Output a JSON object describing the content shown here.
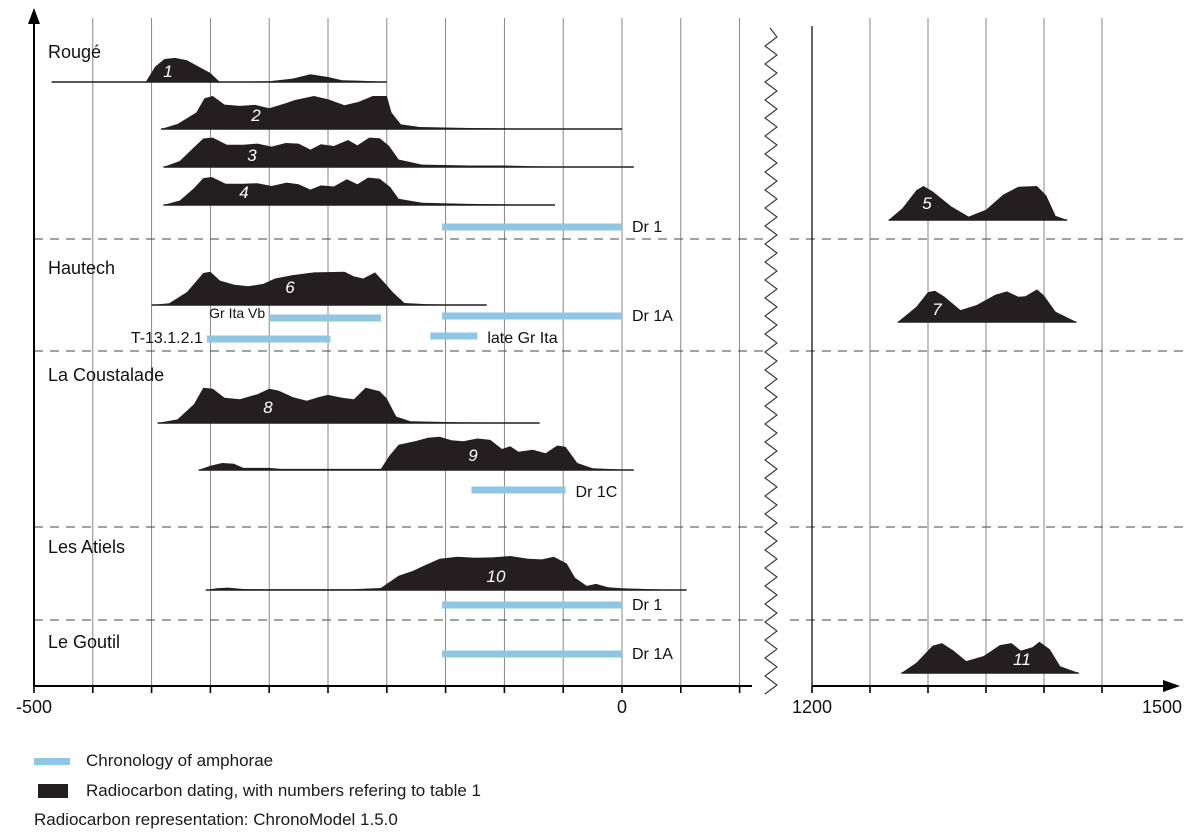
{
  "chart_data": {
    "type": "chronology",
    "left_panel": {
      "xlim": [
        -500,
        500
      ],
      "tick_labels": [
        "-500",
        "0"
      ]
    },
    "right_panel": {
      "xlim": [
        1200,
        1500
      ],
      "tick_labels": [
        "1200",
        "1500"
      ]
    },
    "sites": [
      "Rougé",
      "Hautech",
      "La Coustalade",
      "Les Atiels",
      "Le Goutil"
    ],
    "radiocarbon": [
      {
        "label": "1",
        "xmin": -485,
        "xmax": -200,
        "points": [
          [
            -485,
            0
          ],
          [
            -405,
            0
          ],
          [
            -397,
            0.55
          ],
          [
            -389,
            0.82
          ],
          [
            -380,
            0.86
          ],
          [
            -370,
            0.78
          ],
          [
            -360,
            0.55
          ],
          [
            -350,
            0.32
          ],
          [
            -342,
            0
          ],
          [
            -300,
            0.03
          ],
          [
            -280,
            0.12
          ],
          [
            -265,
            0.28
          ],
          [
            -250,
            0.18
          ],
          [
            -238,
            0.06
          ],
          [
            -225,
            0.05
          ],
          [
            -212,
            0.03
          ],
          [
            -200,
            0
          ]
        ]
      },
      {
        "label": "2",
        "xmin": -392,
        "xmax": 0,
        "points": [
          [
            -392,
            0
          ],
          [
            -378,
            0.15
          ],
          [
            -362,
            0.5
          ],
          [
            -355,
            0.93
          ],
          [
            -348,
            1
          ],
          [
            -338,
            0.74
          ],
          [
            -325,
            0.7
          ],
          [
            -312,
            0.73
          ],
          [
            -300,
            0.63
          ],
          [
            -286,
            0.78
          ],
          [
            -278,
            0.88
          ],
          [
            -262,
            1
          ],
          [
            -250,
            0.9
          ],
          [
            -236,
            0.72
          ],
          [
            -224,
            0.82
          ],
          [
            -212,
            1
          ],
          [
            -200,
            1
          ],
          [
            -196,
            0.5
          ],
          [
            -188,
            0.14
          ],
          [
            -172,
            0.06
          ],
          [
            -130,
            0.03
          ],
          [
            -90,
            0.015
          ],
          [
            0,
            0
          ]
        ]
      },
      {
        "label": "3",
        "xmin": -390,
        "xmax": 10,
        "points": [
          [
            -390,
            0
          ],
          [
            -376,
            0.2
          ],
          [
            -365,
            0.62
          ],
          [
            -356,
            0.95
          ],
          [
            -348,
            0.98
          ],
          [
            -336,
            0.74
          ],
          [
            -322,
            0.74
          ],
          [
            -310,
            0.78
          ],
          [
            -298,
            0.68
          ],
          [
            -286,
            0.8
          ],
          [
            -275,
            0.78
          ],
          [
            -265,
            0.58
          ],
          [
            -256,
            0.76
          ],
          [
            -245,
            0.7
          ],
          [
            -233,
            0.9
          ],
          [
            -225,
            0.72
          ],
          [
            -215,
            0.98
          ],
          [
            -206,
            0.96
          ],
          [
            -198,
            0.7
          ],
          [
            -190,
            0.25
          ],
          [
            -170,
            0.08
          ],
          [
            -130,
            0.05
          ],
          [
            -100,
            0.05
          ],
          [
            -70,
            0.02
          ],
          [
            10,
            0
          ]
        ]
      },
      {
        "label": "4",
        "xmin": -390,
        "xmax": -57,
        "points": [
          [
            -390,
            0
          ],
          [
            -376,
            0.16
          ],
          [
            -364,
            0.6
          ],
          [
            -356,
            0.96
          ],
          [
            -349,
            1
          ],
          [
            -337,
            0.76
          ],
          [
            -322,
            0.76
          ],
          [
            -310,
            0.78
          ],
          [
            -298,
            0.68
          ],
          [
            -285,
            0.8
          ],
          [
            -275,
            0.74
          ],
          [
            -265,
            0.55
          ],
          [
            -256,
            0.7
          ],
          [
            -245,
            0.66
          ],
          [
            -234,
            0.92
          ],
          [
            -225,
            0.74
          ],
          [
            -216,
            0.98
          ],
          [
            -206,
            0.94
          ],
          [
            -197,
            0.64
          ],
          [
            -190,
            0.22
          ],
          [
            -170,
            0.08
          ],
          [
            -130,
            0.04
          ],
          [
            -57,
            0
          ]
        ]
      },
      {
        "label": "5",
        "xmin": 1266,
        "xmax": 1420,
        "points": [
          [
            1266,
            0
          ],
          [
            1278,
            0.35
          ],
          [
            1290,
            0.88
          ],
          [
            1296,
            1
          ],
          [
            1304,
            0.84
          ],
          [
            1320,
            0.4
          ],
          [
            1335,
            0.1
          ],
          [
            1350,
            0.3
          ],
          [
            1365,
            0.75
          ],
          [
            1378,
            0.98
          ],
          [
            1394,
            1
          ],
          [
            1402,
            0.72
          ],
          [
            1410,
            0.12
          ],
          [
            1420,
            0
          ]
        ]
      },
      {
        "label": "6",
        "xmin": -400,
        "xmax": -115,
        "points": [
          [
            -400,
            0
          ],
          [
            -385,
            0.05
          ],
          [
            -370,
            0.38
          ],
          [
            -356,
            0.94
          ],
          [
            -350,
            0.98
          ],
          [
            -342,
            0.72
          ],
          [
            -330,
            0.6
          ],
          [
            -318,
            0.55
          ],
          [
            -305,
            0.62
          ],
          [
            -295,
            0.78
          ],
          [
            -280,
            0.88
          ],
          [
            -262,
            0.96
          ],
          [
            -236,
            0.98
          ],
          [
            -228,
            0.84
          ],
          [
            -220,
            0.78
          ],
          [
            -210,
            0.96
          ],
          [
            -200,
            0.58
          ],
          [
            -195,
            0.38
          ],
          [
            -185,
            0.06
          ],
          [
            -165,
            0.02
          ],
          [
            -115,
            0
          ]
        ]
      },
      {
        "label": "7",
        "xmin": 1274,
        "xmax": 1428,
        "points": [
          [
            1274,
            0
          ],
          [
            1290,
            0.45
          ],
          [
            1300,
            0.88
          ],
          [
            1306,
            0.92
          ],
          [
            1314,
            0.75
          ],
          [
            1328,
            0.35
          ],
          [
            1342,
            0.5
          ],
          [
            1358,
            0.8
          ],
          [
            1368,
            0.9
          ],
          [
            1378,
            0.74
          ],
          [
            1384,
            0.76
          ],
          [
            1394,
            0.96
          ],
          [
            1400,
            0.78
          ],
          [
            1410,
            0.3
          ],
          [
            1428,
            0
          ]
        ]
      },
      {
        "label": "8",
        "xmin": -395,
        "xmax": -70,
        "points": [
          [
            -395,
            0
          ],
          [
            -378,
            0.1
          ],
          [
            -364,
            0.52
          ],
          [
            -356,
            0.98
          ],
          [
            -348,
            0.95
          ],
          [
            -338,
            0.7
          ],
          [
            -325,
            0.66
          ],
          [
            -310,
            0.8
          ],
          [
            -300,
            0.95
          ],
          [
            -292,
            0.9
          ],
          [
            -280,
            0.72
          ],
          [
            -268,
            0.62
          ],
          [
            -258,
            0.72
          ],
          [
            -250,
            0.78
          ],
          [
            -238,
            0.7
          ],
          [
            -228,
            0.66
          ],
          [
            -218,
            0.98
          ],
          [
            -206,
            0.88
          ],
          [
            -200,
            0.68
          ],
          [
            -192,
            0.18
          ],
          [
            -180,
            0.05
          ],
          [
            -140,
            0.02
          ],
          [
            -70,
            0
          ]
        ]
      },
      {
        "label": "9",
        "xmin": -360,
        "xmax": 10,
        "points": [
          [
            -360,
            0
          ],
          [
            -350,
            0.12
          ],
          [
            -340,
            0.2
          ],
          [
            -330,
            0.18
          ],
          [
            -322,
            0.06
          ],
          [
            -300,
            0.06
          ],
          [
            -290,
            0.03
          ],
          [
            -250,
            0.03
          ],
          [
            -205,
            0.03
          ],
          [
            -198,
            0.4
          ],
          [
            -190,
            0.72
          ],
          [
            -176,
            0.82
          ],
          [
            -165,
            0.92
          ],
          [
            -155,
            0.95
          ],
          [
            -145,
            0.85
          ],
          [
            -135,
            0.82
          ],
          [
            -123,
            0.9
          ],
          [
            -112,
            0.86
          ],
          [
            -102,
            0.6
          ],
          [
            -95,
            0.68
          ],
          [
            -88,
            0.52
          ],
          [
            -76,
            0.58
          ],
          [
            -65,
            0.48
          ],
          [
            -55,
            0.7
          ],
          [
            -48,
            0.66
          ],
          [
            -38,
            0.2
          ],
          [
            -25,
            0.05
          ],
          [
            10,
            0
          ]
        ]
      },
      {
        "label": "10",
        "xmin": -354,
        "xmax": 55,
        "points": [
          [
            -354,
            0
          ],
          [
            -345,
            0.05
          ],
          [
            -335,
            0.07
          ],
          [
            -322,
            0.03
          ],
          [
            -305,
            0.02
          ],
          [
            -285,
            0.02
          ],
          [
            -230,
            0.02
          ],
          [
            -205,
            0.06
          ],
          [
            -190,
            0.42
          ],
          [
            -178,
            0.56
          ],
          [
            -168,
            0.72
          ],
          [
            -155,
            0.92
          ],
          [
            -140,
            0.98
          ],
          [
            -125,
            0.95
          ],
          [
            -110,
            0.96
          ],
          [
            -95,
            1
          ],
          [
            -80,
            0.92
          ],
          [
            -68,
            0.9
          ],
          [
            -58,
            0.98
          ],
          [
            -47,
            0.78
          ],
          [
            -40,
            0.36
          ],
          [
            -30,
            0.12
          ],
          [
            -22,
            0.18
          ],
          [
            -12,
            0.08
          ],
          [
            0,
            0.05
          ],
          [
            20,
            0.03
          ],
          [
            55,
            0
          ]
        ]
      },
      {
        "label": "11",
        "xmin": 1277,
        "xmax": 1430,
        "points": [
          [
            1277,
            0
          ],
          [
            1290,
            0.3
          ],
          [
            1304,
            0.8
          ],
          [
            1312,
            0.88
          ],
          [
            1322,
            0.66
          ],
          [
            1333,
            0.35
          ],
          [
            1348,
            0.5
          ],
          [
            1362,
            0.82
          ],
          [
            1372,
            0.88
          ],
          [
            1380,
            0.66
          ],
          [
            1390,
            0.76
          ],
          [
            1396,
            0.92
          ],
          [
            1405,
            0.7
          ],
          [
            1414,
            0.2
          ],
          [
            1430,
            0
          ]
        ]
      }
    ],
    "amphorae": [
      {
        "label": "Dr 1",
        "xmin": -153,
        "xmax": 0
      },
      {
        "label": "Dr 1A",
        "xmin": -153,
        "xmax": 0
      },
      {
        "label": "Gr Ita Vb",
        "xmin": -300,
        "xmax": -205
      },
      {
        "label": "T-13.1.2.1",
        "xmin": -353,
        "xmax": -248
      },
      {
        "label": "late Gr Ita",
        "xmin": -163,
        "xmax": -123
      },
      {
        "label": "Dr 1C",
        "xmin": -128,
        "xmax": -48
      },
      {
        "label": "Dr 1",
        "xmin": -153,
        "xmax": 0
      },
      {
        "label": "Dr 1A",
        "xmin": -153,
        "xmax": 0
      }
    ],
    "colors": {
      "radiocarbon": "#231f20",
      "amphorae": "#8fc6e4",
      "grid": "#7a7a7a"
    }
  },
  "legend": {
    "amphorae_label": "Chronology of amphorae",
    "radiocarbon_label": "Radiocarbon dating, with numbers refering to table 1",
    "note": "Radiocarbon representation: ChronoModel 1.5.0"
  }
}
